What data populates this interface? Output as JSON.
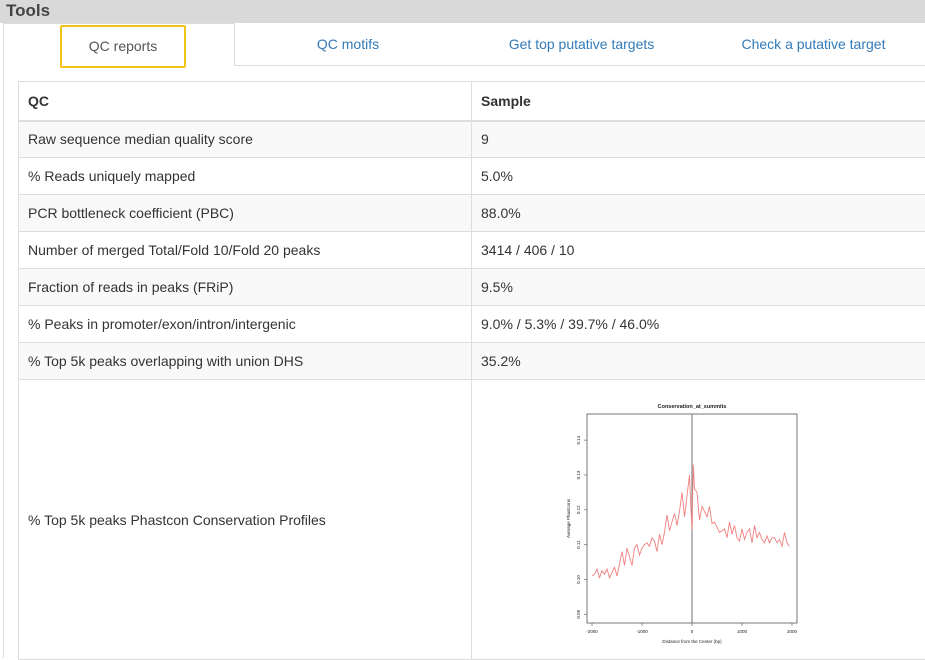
{
  "header": {
    "title": "Tools"
  },
  "tabs": [
    {
      "label": "QC reports",
      "active": true
    },
    {
      "label": "QC motifs",
      "active": false
    },
    {
      "label": "Get top putative targets",
      "active": false
    },
    {
      "label": "Check a putative target",
      "active": false
    }
  ],
  "table": {
    "columns": [
      "QC",
      "Sample"
    ],
    "rows": [
      {
        "label": "Raw sequence median quality score",
        "value": "9"
      },
      {
        "label": "% Reads uniquely mapped",
        "value": "5.0%"
      },
      {
        "label": "PCR bottleneck coefficient (PBC)",
        "value": "88.0%"
      },
      {
        "label": "Number of merged Total/Fold 10/Fold 20 peaks",
        "value": "3414 / 406 / 10"
      },
      {
        "label": "Fraction of reads in peaks (FRiP)",
        "value": "9.5%"
      },
      {
        "label": "% Peaks in promoter/exon/intron/intergenic",
        "value": "9.0% / 5.3% / 39.7% / 46.0%"
      },
      {
        "label": "% Top 5k peaks overlapping with union DHS",
        "value": "35.2%"
      },
      {
        "label": "% Top 5k peaks Phastcon Conservation Profiles",
        "value": ""
      }
    ]
  },
  "chart_data": {
    "type": "line",
    "title": "Conservation_at_summits",
    "xlabel": "Distance from the Center (bp)",
    "ylabel": "Average Phastcons",
    "xlim": [
      -2100,
      2100
    ],
    "ylim": [
      0.0875,
      0.1475
    ],
    "xticks": [
      -2000,
      -1000,
      0,
      1000,
      2000
    ],
    "yticks": [
      0.09,
      0.1,
      0.11,
      0.12,
      0.13,
      0.14
    ],
    "ytick_labels": [
      "0.09",
      "0.10",
      "0.11",
      "0.12",
      "0.13",
      "0.14"
    ],
    "line_color": "#f08080",
    "vline_x": 0,
    "series": [
      {
        "x": [
          -2000,
          -1950,
          -1900,
          -1850,
          -1800,
          -1750,
          -1700,
          -1650,
          -1600,
          -1550,
          -1500,
          -1450,
          -1400,
          -1350,
          -1300,
          -1250,
          -1200,
          -1150,
          -1100,
          -1050,
          -1000,
          -950,
          -900,
          -850,
          -800,
          -750,
          -700,
          -650,
          -600,
          -550,
          -500,
          -450,
          -400,
          -350,
          -300,
          -250,
          -200,
          -150,
          -100,
          -50,
          -25,
          0,
          25,
          50,
          100,
          150,
          200,
          250,
          300,
          350,
          400,
          450,
          500,
          550,
          600,
          650,
          700,
          750,
          800,
          850,
          900,
          950,
          1000,
          1050,
          1100,
          1150,
          1200,
          1250,
          1300,
          1350,
          1400,
          1450,
          1500,
          1550,
          1600,
          1650,
          1700,
          1750,
          1800,
          1850,
          1900,
          1950
        ],
        "y": [
          0.101,
          0.1015,
          0.103,
          0.1005,
          0.1025,
          0.1015,
          0.103,
          0.1005,
          0.102,
          0.1035,
          0.101,
          0.1045,
          0.108,
          0.104,
          0.109,
          0.1065,
          0.104,
          0.109,
          0.11,
          0.107,
          0.109,
          0.11,
          0.1105,
          0.1095,
          0.112,
          0.111,
          0.108,
          0.113,
          0.11,
          0.1135,
          0.1185,
          0.114,
          0.1165,
          0.119,
          0.1155,
          0.1195,
          0.125,
          0.118,
          0.124,
          0.13,
          0.121,
          0.114,
          0.133,
          0.126,
          0.125,
          0.117,
          0.121,
          0.1195,
          0.118,
          0.121,
          0.116,
          0.1165,
          0.115,
          0.1135,
          0.114,
          0.1145,
          0.112,
          0.1165,
          0.113,
          0.1155,
          0.112,
          0.111,
          0.1145,
          0.1115,
          0.1135,
          0.1145,
          0.1105,
          0.1155,
          0.112,
          0.1135,
          0.1115,
          0.1105,
          0.1125,
          0.1105,
          0.112,
          0.112,
          0.1105,
          0.1115,
          0.1095,
          0.1135,
          0.1105,
          0.1095
        ]
      }
    ]
  }
}
